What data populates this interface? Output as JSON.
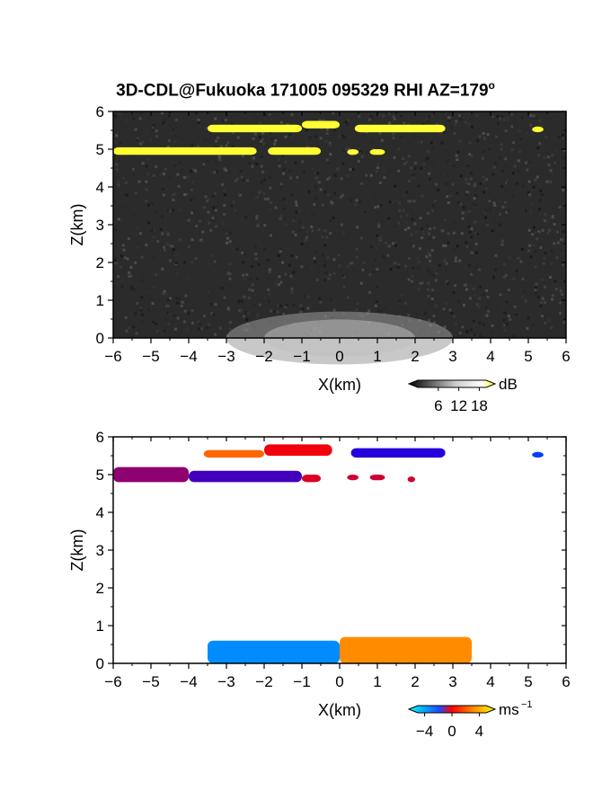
{
  "title": {
    "text": "3D-CDL@Fukuoka 171005 095329 RHI AZ=179",
    "degree_mark": "o"
  },
  "chart_data": [
    {
      "type": "heatmap",
      "panel": "top",
      "variable": "backscatter intensity",
      "xlabel": "X(km)",
      "ylabel": "Z(km)",
      "xlim": [
        -6,
        6
      ],
      "ylim": [
        0,
        6
      ],
      "xticks": [
        -6,
        -5,
        -4,
        -3,
        -2,
        -1,
        0,
        1,
        2,
        3,
        4,
        5,
        6
      ],
      "yticks": [
        0,
        1,
        2,
        3,
        4,
        5,
        6
      ],
      "background": "#2b2b2b",
      "colorbar": {
        "unit": "dB",
        "ticks": [
          6,
          12,
          18
        ],
        "range": [
          0,
          20
        ],
        "colors": [
          "#000000",
          "#ffffff",
          "#ffff00"
        ]
      },
      "features": [
        {
          "name": "cloud layer ~4.9 km",
          "x": [
            -6.0,
            -2.2
          ],
          "z": [
            4.85,
            5.05
          ],
          "value": 18
        },
        {
          "name": "cloud layer ~4.9 km",
          "x": [
            -1.9,
            -0.5
          ],
          "z": [
            4.85,
            5.05
          ],
          "value": 18
        },
        {
          "name": "cloud layer ~5.5 km",
          "x": [
            -3.5,
            -1.0
          ],
          "z": [
            5.45,
            5.65
          ],
          "value": 18
        },
        {
          "name": "cloud layer ~5.6 km",
          "x": [
            -1.0,
            0.0
          ],
          "z": [
            5.55,
            5.75
          ],
          "value": 18
        },
        {
          "name": "cloud layer ~5.5 km",
          "x": [
            0.4,
            2.8
          ],
          "z": [
            5.45,
            5.65
          ],
          "value": 18
        },
        {
          "name": "cloud fragment",
          "x": [
            0.2,
            0.5
          ],
          "z": [
            4.85,
            5.0
          ],
          "value": 18
        },
        {
          "name": "cloud fragment",
          "x": [
            0.8,
            1.2
          ],
          "z": [
            4.85,
            5.0
          ],
          "value": 18
        },
        {
          "name": "cloud fragment",
          "x": [
            5.1,
            5.4
          ],
          "z": [
            5.45,
            5.6
          ],
          "value": 18
        },
        {
          "name": "boundary layer aerosol",
          "x": [
            -3.0,
            3.0
          ],
          "z": [
            0.0,
            0.7
          ],
          "value": 12
        }
      ]
    },
    {
      "type": "heatmap",
      "panel": "bottom",
      "variable": "radial velocity",
      "xlabel": "X(km)",
      "ylabel": "Z(km)",
      "xlim": [
        -6,
        6
      ],
      "ylim": [
        0,
        6
      ],
      "xticks": [
        -6,
        -5,
        -4,
        -3,
        -2,
        -1,
        0,
        1,
        2,
        3,
        4,
        5,
        6
      ],
      "yticks": [
        0,
        1,
        2,
        3,
        4,
        5,
        6
      ],
      "background": "#ffffff",
      "colorbar": {
        "unit": "ms",
        "unit_exponent": "-1",
        "ticks": [
          -4,
          0,
          4
        ],
        "range": [
          -5,
          5
        ],
        "colors": [
          "#00ffff",
          "#0000ff",
          "#ff0000",
          "#ffff00"
        ]
      },
      "features": [
        {
          "name": "cloud layer ~4.9 km",
          "x": [
            -6.0,
            -4.0
          ],
          "z": [
            4.8,
            5.2
          ],
          "value": 0.2
        },
        {
          "name": "cloud layer ~4.9 km",
          "x": [
            -4.0,
            -1.0
          ],
          "z": [
            4.8,
            5.1
          ],
          "value": -0.8
        },
        {
          "name": "cloud layer ~4.9 km",
          "x": [
            -1.0,
            -0.5
          ],
          "z": [
            4.8,
            5.0
          ],
          "value": 1.2
        },
        {
          "name": "cloud layer ~5.6 km",
          "x": [
            -3.6,
            -2.0
          ],
          "z": [
            5.45,
            5.65
          ],
          "value": 3.0
        },
        {
          "name": "cloud layer ~5.7 km",
          "x": [
            -2.0,
            -0.2
          ],
          "z": [
            5.5,
            5.8
          ],
          "value": 1.5
        },
        {
          "name": "cloud layer ~5.6 km",
          "x": [
            0.3,
            2.8
          ],
          "z": [
            5.45,
            5.7
          ],
          "value": -1.2
        },
        {
          "name": "cloud fragment",
          "x": [
            0.2,
            0.5
          ],
          "z": [
            4.85,
            5.0
          ],
          "value": 1.0
        },
        {
          "name": "cloud fragment",
          "x": [
            0.8,
            1.2
          ],
          "z": [
            4.85,
            5.0
          ],
          "value": 1.0
        },
        {
          "name": "cloud fragment",
          "x": [
            1.8,
            2.0
          ],
          "z": [
            4.8,
            4.95
          ],
          "value": 1.0
        },
        {
          "name": "cloud fragment",
          "x": [
            5.1,
            5.4
          ],
          "z": [
            5.45,
            5.6
          ],
          "value": -2.5
        },
        {
          "name": "boundary layer flow",
          "x": [
            -3.5,
            0.0
          ],
          "z": [
            0.0,
            0.6
          ],
          "value": -3.5
        },
        {
          "name": "boundary layer flow",
          "x": [
            0.0,
            3.5
          ],
          "z": [
            0.0,
            0.7
          ],
          "value": 3.5
        }
      ]
    }
  ]
}
